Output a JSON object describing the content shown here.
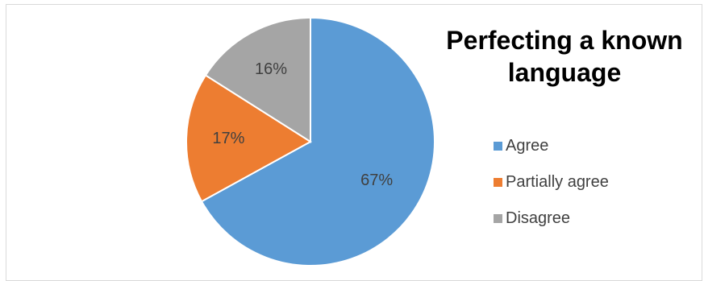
{
  "chart_data": {
    "type": "pie",
    "title_lines": [
      "Perfecting a known",
      "language"
    ],
    "categories": [
      "Agree",
      "Partially agree",
      "Disagree"
    ],
    "values": [
      67,
      17,
      16
    ],
    "data_labels": [
      "67%",
      "17%",
      "16%"
    ],
    "colors": [
      "#5b9bd5",
      "#ed7d31",
      "#a5a5a5"
    ],
    "legend_position": "right"
  }
}
